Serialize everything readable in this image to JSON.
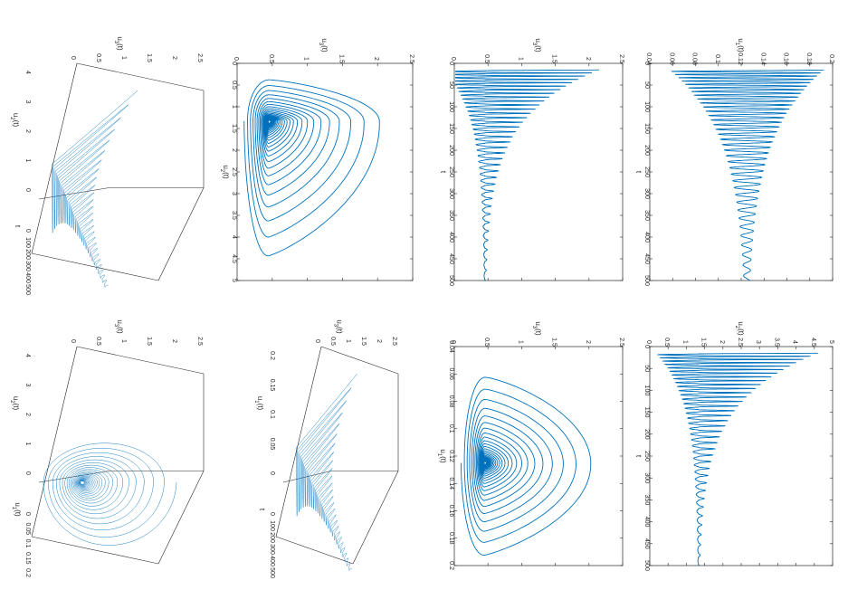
{
  "figure": {
    "orientation": "rotated 90 degrees clockwise",
    "line_color": "#0072bd",
    "layout": "2 rows x 4 panels"
  },
  "chart_data": [
    {
      "id": "p1",
      "type": "line",
      "title": "",
      "xlabel": "t",
      "ylabel": "u_1(t)",
      "xlim": [
        0,
        500
      ],
      "ylim": [
        0.04,
        0.2
      ],
      "xticks": [
        "0",
        "50",
        "100",
        "150",
        "200",
        "250",
        "300",
        "350",
        "400",
        "450",
        "500"
      ],
      "yticks": [
        "0.04",
        "0.06",
        "0.08",
        "0.1",
        "0.12",
        "0.14",
        "0.16",
        "0.18",
        "0.2"
      ],
      "series": [
        {
          "kind": "damped-oscillation",
          "t_start": 15,
          "t_end": 500,
          "equilibrium": 0.125,
          "upper_start": 0.193,
          "lower_start": 0.058,
          "decay_time": 150,
          "period_start": 7,
          "period_end": 20
        }
      ]
    },
    {
      "id": "p2",
      "type": "line",
      "title": "",
      "xlabel": "t",
      "ylabel": "u_3(t)",
      "xlim": [
        0,
        500
      ],
      "ylim": [
        0,
        2.5
      ],
      "xticks": [
        "0",
        "50",
        "100",
        "150",
        "200",
        "250",
        "300",
        "350",
        "400",
        "450",
        "500"
      ],
      "yticks": [
        "0",
        "0.5",
        "1",
        "1.5",
        "2",
        "2.5"
      ],
      "series": [
        {
          "kind": "spike-oscillation",
          "t_start": 15,
          "t_end": 500,
          "equilibrium": 0.45,
          "peak_start": 2.15,
          "decay_time": 110,
          "period_start": 7,
          "period_end": 20
        }
      ]
    },
    {
      "id": "p3",
      "type": "line",
      "title": "",
      "xlabel": "u_2(t)",
      "ylabel": "u_3(t)",
      "xlim": [
        0,
        5
      ],
      "ylim": [
        0,
        2.5
      ],
      "xticks": [
        "0",
        "0.5",
        "1",
        "1.5",
        "2",
        "2.5",
        "3",
        "3.5",
        "4",
        "4.5",
        "5"
      ],
      "yticks": [
        "0",
        "0.5",
        "1",
        "1.5",
        "2",
        "2.5"
      ],
      "series": [
        {
          "kind": "phase-spiral",
          "center_x": 1.33,
          "center_y": 0.45,
          "start_x": 0.3,
          "start_y": 1.2,
          "max_x": 4.55,
          "max_y": 2.15,
          "turns": 28
        }
      ]
    },
    {
      "id": "p4",
      "type": "line3d",
      "title": "",
      "axes": [
        "t",
        "u_2(t)",
        "u_3(t)"
      ],
      "t_ticks": [
        "0",
        "100",
        "200",
        "300",
        "400",
        "500"
      ],
      "u2_ticks": [
        "0",
        "1",
        "2",
        "3",
        "4"
      ],
      "u3_ticks": [
        "0",
        "0.5",
        "1",
        "1.5",
        "2",
        "2.5"
      ],
      "series": [
        {
          "kind": "3d-spiral",
          "t_range": [
            0,
            500
          ]
        }
      ]
    },
    {
      "id": "p5",
      "type": "line",
      "title": "",
      "xlabel": "t",
      "ylabel": "u_2(t)",
      "xlim": [
        0,
        500
      ],
      "ylim": [
        0,
        5
      ],
      "xticks": [
        "0",
        "50",
        "100",
        "150",
        "200",
        "250",
        "300",
        "350",
        "400",
        "450",
        "500"
      ],
      "yticks": [
        "0",
        "0.5",
        "1",
        "1.5",
        "2",
        "2.5",
        "3",
        "3.5",
        "4",
        "4.5",
        "5"
      ],
      "series": [
        {
          "kind": "spike-oscillation",
          "t_start": 15,
          "t_end": 500,
          "equilibrium": 1.33,
          "peak_start": 4.6,
          "decay_time": 110,
          "period_start": 7,
          "period_end": 20
        }
      ]
    },
    {
      "id": "p6",
      "type": "line",
      "title": "",
      "xlabel": "u_1(t)",
      "ylabel": "u_3(t)",
      "xlim": [
        0.04,
        0.2
      ],
      "ylim": [
        0,
        2.5
      ],
      "xticks": [
        "0.04",
        "0.06",
        "0.08",
        "0.1",
        "0.12",
        "0.14",
        "0.16",
        "0.18",
        "0.2"
      ],
      "yticks": [
        "0",
        "0.5",
        "1",
        "1.5",
        "2",
        "2.5"
      ],
      "series": [
        {
          "kind": "phase-spiral",
          "center_x": 0.125,
          "center_y": 0.45,
          "start_x": 0.19,
          "start_y": 0.3,
          "max_x": 0.195,
          "max_y": 2.15,
          "min_x": 0.055,
          "turns": 28
        }
      ]
    },
    {
      "id": "p7",
      "type": "line3d",
      "title": "",
      "axes": [
        "t",
        "u_1(t)",
        "u_3(t)"
      ],
      "t_ticks": [
        "0",
        "100",
        "200",
        "300",
        "400",
        "500"
      ],
      "u1_ticks": [
        "0",
        "0.05",
        "0.1",
        "0.15",
        "0.2"
      ],
      "u3_ticks": [
        "0",
        "0.5",
        "1",
        "1.5",
        "2",
        "2.5"
      ],
      "series": [
        {
          "kind": "3d-spiral",
          "t_range": [
            0,
            500
          ]
        }
      ]
    },
    {
      "id": "p8",
      "type": "line3d",
      "title": "",
      "axes": [
        "u_1(t)",
        "u_2(t)",
        "u_3(t)"
      ],
      "u1_ticks": [
        "0",
        "0.05",
        "0.1",
        "0.15",
        "0.2"
      ],
      "u2_ticks": [
        "0",
        "1",
        "2",
        "3",
        "4"
      ],
      "u3_ticks": [
        "0",
        "0.5",
        "1",
        "1.5",
        "2",
        "2.5"
      ],
      "series": [
        {
          "kind": "3d-phase-spiral"
        }
      ]
    }
  ]
}
